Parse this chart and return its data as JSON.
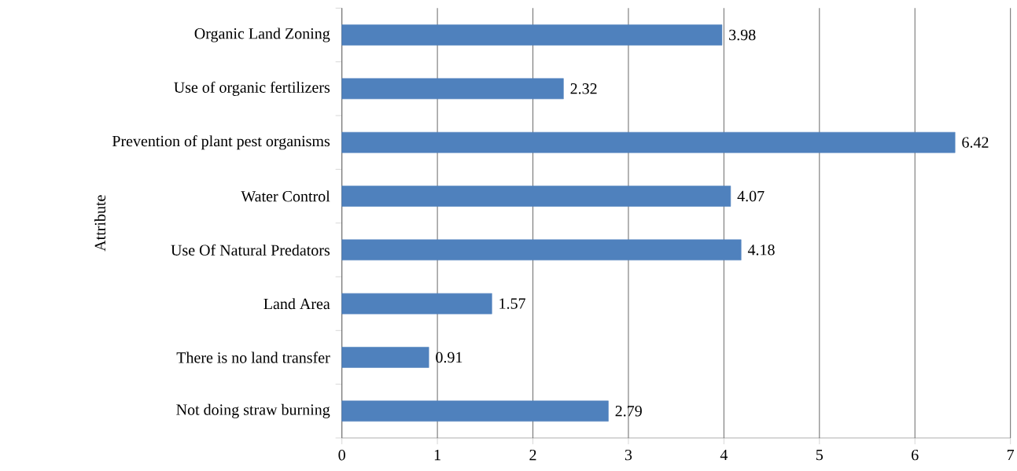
{
  "chart_data": {
    "type": "bar",
    "orientation": "horizontal",
    "ylabel": "Attribute",
    "categories": [
      "Organic Land Zoning",
      "Use of organic fertilizers",
      "Prevention of plant pest organisms",
      "Water Control",
      "Use Of Natural Predators",
      "Land Area",
      "There is no land transfer",
      "Not doing straw burning"
    ],
    "values": [
      3.98,
      2.32,
      6.42,
      4.07,
      4.18,
      1.57,
      0.91,
      2.79
    ],
    "color": "#4f81bd",
    "xlim": [
      0,
      7
    ],
    "xticks": [
      0,
      1,
      2,
      3,
      4,
      5,
      6,
      7
    ],
    "grid": "x",
    "data_labels": true
  }
}
